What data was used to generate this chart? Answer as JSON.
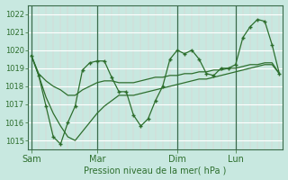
{
  "xlabel": "Pression niveau de la mer( hPa )",
  "bg_color": "#c8e8e0",
  "line_color": "#2d6e2d",
  "grid_color_major": "#b0d8cc",
  "grid_color_white": "#ffffff",
  "ylim": [
    1014.5,
    1022.5
  ],
  "yticks": [
    1015,
    1016,
    1017,
    1018,
    1019,
    1020,
    1021,
    1022
  ],
  "xtick_labels": [
    "Sam",
    "Mar",
    "Dim",
    "Lun"
  ],
  "xtick_positions": [
    0,
    9,
    20,
    28
  ],
  "vline_positions": [
    0,
    9,
    20,
    28
  ],
  "total_points": 35,
  "series_main": [
    1019.7,
    1018.6,
    1016.9,
    1015.2,
    1014.8,
    1016.0,
    1016.9,
    1018.9,
    1019.3,
    1019.4,
    1019.4,
    1018.5,
    1017.7,
    1017.7,
    1016.4,
    1015.8,
    1016.2,
    1017.2,
    1018.0,
    1019.5,
    1020.0,
    1019.8,
    1020.0,
    1019.5,
    1018.7,
    1018.6,
    1019.0,
    1019.0,
    1019.2,
    1020.7,
    1021.3,
    1021.7,
    1021.6,
    1020.3,
    1018.7
  ],
  "series_upper": [
    1019.7,
    1018.7,
    1018.3,
    1018.0,
    1017.8,
    1017.5,
    1017.5,
    1017.8,
    1018.0,
    1018.2,
    1018.3,
    1018.3,
    1018.2,
    1018.2,
    1018.2,
    1018.3,
    1018.4,
    1018.5,
    1018.5,
    1018.6,
    1018.6,
    1018.7,
    1018.7,
    1018.8,
    1018.8,
    1018.9,
    1018.9,
    1019.0,
    1019.0,
    1019.1,
    1019.2,
    1019.2,
    1019.3,
    1019.3,
    1018.7
  ],
  "series_lower": [
    1019.7,
    1018.6,
    1017.4,
    1016.5,
    1015.8,
    1015.2,
    1015.0,
    1015.5,
    1016.0,
    1016.5,
    1016.9,
    1017.2,
    1017.5,
    1017.5,
    1017.5,
    1017.6,
    1017.7,
    1017.8,
    1017.9,
    1018.0,
    1018.1,
    1018.2,
    1018.3,
    1018.4,
    1018.4,
    1018.5,
    1018.6,
    1018.7,
    1018.8,
    1018.9,
    1019.0,
    1019.1,
    1019.2,
    1019.2,
    1018.7
  ]
}
